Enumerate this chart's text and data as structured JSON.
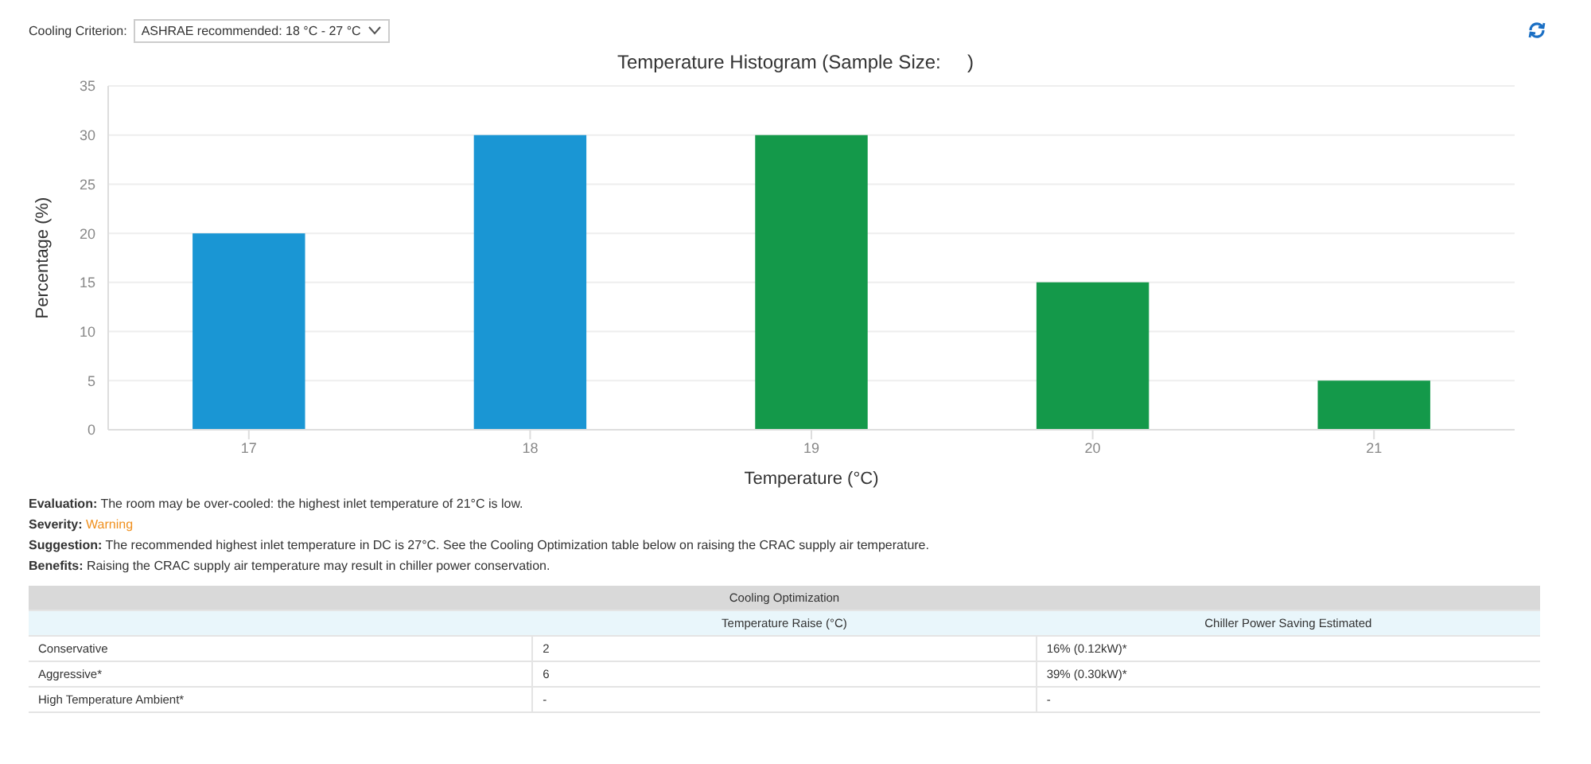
{
  "chart_data": {
    "type": "bar",
    "title": "Temperature Histogram (Sample Size:     )",
    "xlabel": "Temperature (°C)",
    "ylabel": "Percentage (%)",
    "categories": [
      "17",
      "18",
      "19",
      "20",
      "21"
    ],
    "values": [
      20,
      30,
      30,
      15,
      5
    ],
    "colors": [
      "#1a96d4",
      "#1a96d4",
      "#14994a",
      "#14994a",
      "#14994a"
    ],
    "ylim": [
      0,
      35
    ],
    "yticks": [
      0,
      5,
      10,
      15,
      20,
      25,
      30,
      35
    ],
    "grid": "y",
    "annotations": [
      "Cooling Criterion:",
      "ASHRAE recommended: 18 °C - 27 °C",
      "Evaluation: The room may be over-cooled: the highest inlet temperature of 21°C is low.",
      "Severity: Warning",
      "Suggestion: The recommended highest inlet temperature in DC is 27°C. See the Cooling Optimization table below on raising the CRAC supply air temperature.",
      "Benefits: Raising the CRAC supply air temperature may result in chiller power conservation.",
      "Cooling Optimization",
      "Temperature Raise (°C)",
      "Chiller Power Saving Estimated",
      "Conservative",
      "2",
      "16% (0.12kW)*",
      "Aggressive*",
      "6",
      "39% (0.30kW)*",
      "High Temperature Ambient*",
      "-",
      "-"
    ]
  }
}
